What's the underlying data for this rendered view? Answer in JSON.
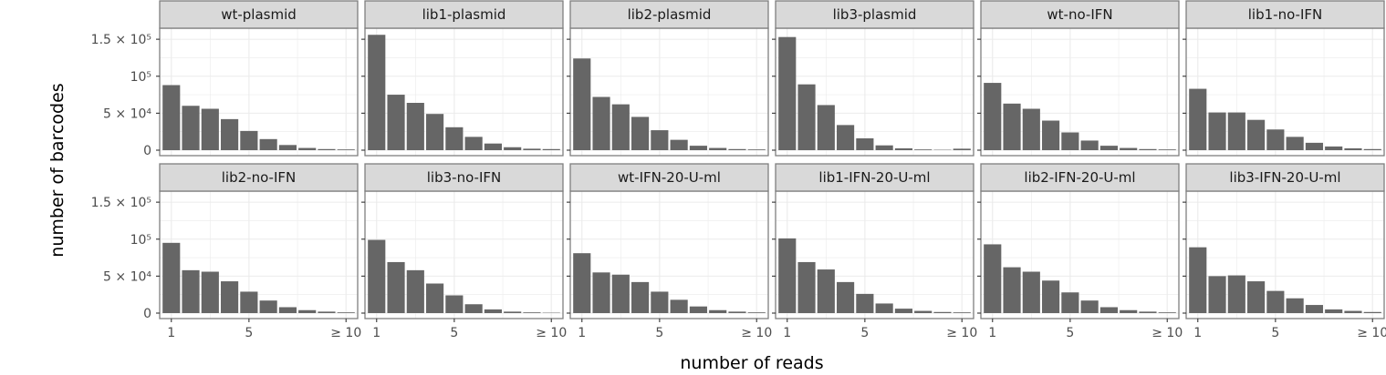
{
  "chart_data": {
    "type": "bar",
    "facet_layout": "2 rows x 6 columns",
    "xlabel": "number of reads",
    "ylabel": "number of barcodes",
    "x_categories": [
      "1",
      "2",
      "3",
      "4",
      "5",
      "6",
      "7",
      "8",
      "9",
      "≥ 10"
    ],
    "x_tick_labels": [
      "1",
      "5",
      "≥ 10"
    ],
    "y_ticks": [
      {
        "value": 0,
        "label": "0"
      },
      {
        "value": 50000,
        "label": "5 × 10⁴"
      },
      {
        "value": 100000,
        "label": "10⁵"
      },
      {
        "value": 150000,
        "label": "1.5 × 10⁵"
      }
    ],
    "ylim": [
      0,
      160000
    ],
    "grid": true,
    "colors": {
      "bar": "#666666",
      "panel_border": "#7f7f7f",
      "strip_fill": "#d9d9d9",
      "grid": "#ebebeb"
    },
    "facets": [
      {
        "label": "wt-plasmid",
        "values": [
          88000,
          60000,
          56000,
          42000,
          26000,
          15000,
          7000,
          3000,
          1500,
          1000
        ]
      },
      {
        "label": "lib1-plasmid",
        "values": [
          156000,
          75000,
          64000,
          49000,
          31000,
          18000,
          9000,
          4000,
          2000,
          1500
        ]
      },
      {
        "label": "lib2-plasmid",
        "values": [
          124000,
          72000,
          62000,
          45000,
          27000,
          14000,
          6000,
          3000,
          1500,
          1000
        ]
      },
      {
        "label": "lib3-plasmid",
        "values": [
          153000,
          89000,
          61000,
          34000,
          16000,
          6500,
          2500,
          1000,
          500,
          2000
        ]
      },
      {
        "label": "wt-no-IFN",
        "values": [
          91000,
          63000,
          56000,
          40000,
          24000,
          13000,
          6000,
          3000,
          1500,
          1000
        ]
      },
      {
        "label": "lib1-no-IFN",
        "values": [
          83000,
          51000,
          51000,
          41000,
          28000,
          18000,
          10000,
          5000,
          2500,
          1500
        ]
      },
      {
        "label": "lib2-no-IFN",
        "values": [
          95000,
          58000,
          56000,
          43000,
          29000,
          17000,
          8000,
          4000,
          2000,
          1000
        ]
      },
      {
        "label": "lib3-no-IFN",
        "values": [
          99000,
          69000,
          58000,
          40000,
          24000,
          12000,
          5000,
          2000,
          1000,
          500
        ]
      },
      {
        "label": "wt-IFN-20-U-ml",
        "values": [
          81000,
          55000,
          52000,
          42000,
          29000,
          18000,
          9000,
          4000,
          2000,
          1000
        ]
      },
      {
        "label": "lib1-IFN-20-U-ml",
        "values": [
          101000,
          69000,
          59000,
          42000,
          26000,
          13000,
          6000,
          3000,
          1500,
          1000
        ]
      },
      {
        "label": "lib2-IFN-20-U-ml",
        "values": [
          93000,
          62000,
          56000,
          44000,
          28000,
          17000,
          8000,
          4000,
          2000,
          1000
        ]
      },
      {
        "label": "lib3-IFN-20-U-ml",
        "values": [
          89000,
          50000,
          51000,
          43000,
          30000,
          20000,
          11000,
          5000,
          3000,
          1500
        ]
      }
    ]
  }
}
